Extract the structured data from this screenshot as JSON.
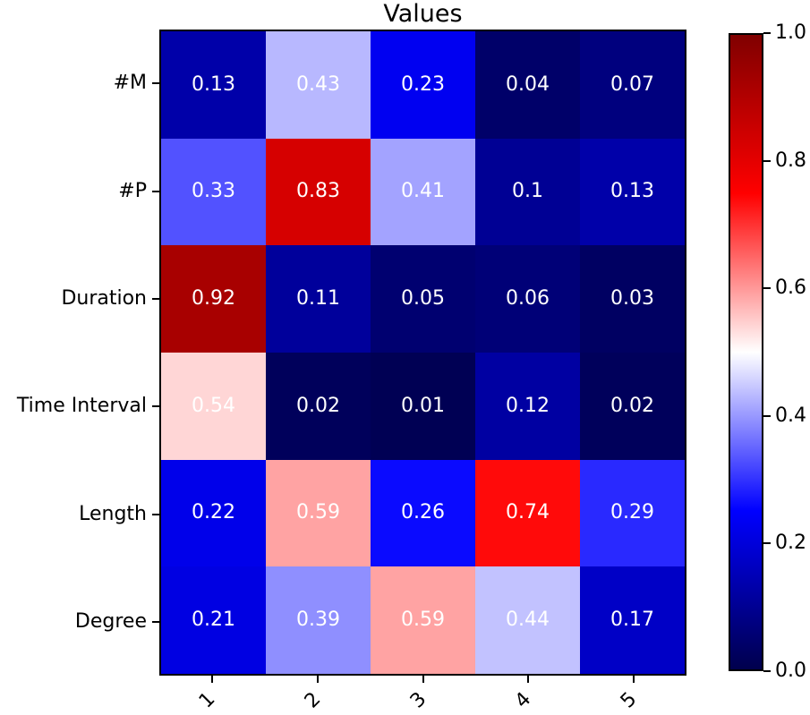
{
  "figure": {
    "background_color": "#ffffff",
    "axis_color": "#000000"
  },
  "chart_data": {
    "type": "heatmap",
    "title": "Values",
    "rows": [
      "#M",
      "#P",
      "Duration",
      "Time Interval",
      "Length",
      "Degree"
    ],
    "columns": [
      "1",
      "2",
      "3",
      "4",
      "5"
    ],
    "values": [
      [
        0.13,
        0.43,
        0.23,
        0.04,
        0.07
      ],
      [
        0.33,
        0.83,
        0.41,
        0.1,
        0.13
      ],
      [
        0.92,
        0.11,
        0.05,
        0.06,
        0.03
      ],
      [
        0.54,
        0.02,
        0.01,
        0.12,
        0.02
      ],
      [
        0.22,
        0.59,
        0.26,
        0.74,
        0.29
      ],
      [
        0.21,
        0.39,
        0.59,
        0.44,
        0.17
      ]
    ],
    "vmin": 0.0,
    "vmax": 1.0,
    "colormap": "seismic",
    "annotation_color": "#ffffff",
    "grid": false,
    "x_tick_rotation_deg": 45,
    "colorbar": {
      "position": "right",
      "tick_labels": [
        "0.0",
        "0.2",
        "0.4",
        "0.6",
        "0.8",
        "1.0"
      ],
      "tick_values": [
        0.0,
        0.2,
        0.4,
        0.6,
        0.8,
        1.0
      ]
    }
  }
}
